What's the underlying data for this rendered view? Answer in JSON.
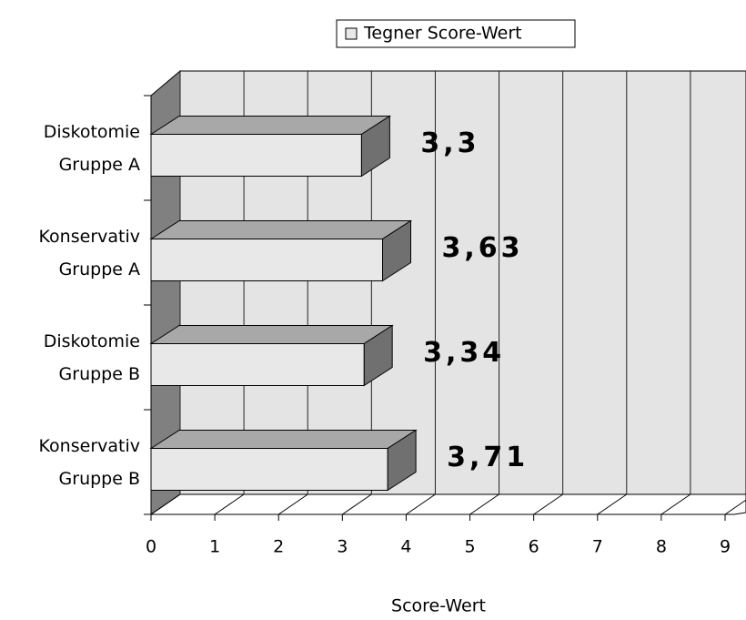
{
  "chart_data": {
    "type": "bar3d_horizontal",
    "legend_title": "Tegner Score-Wert",
    "x_axis_label": "Score-Wert",
    "categories": [
      [
        "Diskotomie",
        "Gruppe A"
      ],
      [
        "Konservativ",
        "Gruppe A"
      ],
      [
        "Diskotomie",
        "Gruppe B"
      ],
      [
        "Konservativ",
        "Gruppe B"
      ]
    ],
    "values": [
      3.3,
      3.63,
      3.34,
      3.71
    ],
    "value_labels": [
      "3,3",
      "3,63",
      "3,34",
      "3,71"
    ],
    "xlim": [
      0,
      9
    ],
    "xticks": [
      0,
      1,
      2,
      3,
      4,
      5,
      6,
      7,
      8,
      9
    ],
    "grid": true,
    "legend": "top",
    "color": "#e8e8e8"
  }
}
